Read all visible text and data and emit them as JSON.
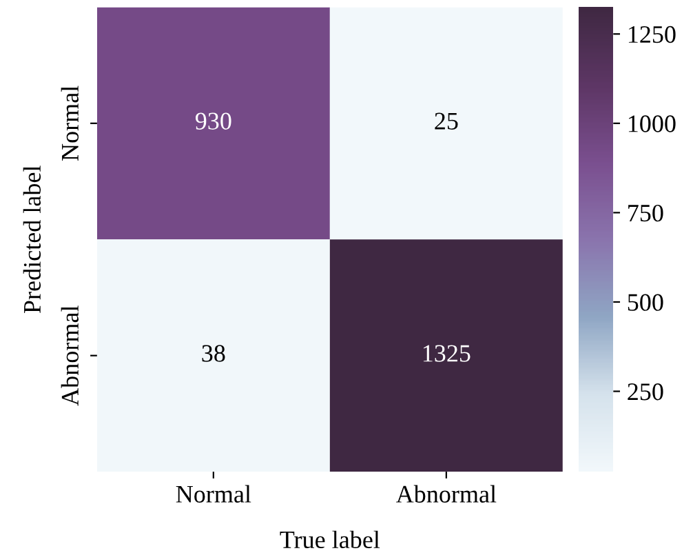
{
  "chart_data": {
    "type": "heatmap",
    "xlabel": "True label",
    "ylabel": "Predicted label",
    "categories": [
      "Normal",
      "Abnormal"
    ],
    "y_categories": [
      "Normal",
      "Abnormal"
    ],
    "cells": [
      [
        930,
        25
      ],
      [
        38,
        1325
      ]
    ],
    "data_labels": true,
    "clim": [
      25,
      1325
    ],
    "cticks": [
      250,
      500,
      750,
      1000,
      1250
    ]
  }
}
